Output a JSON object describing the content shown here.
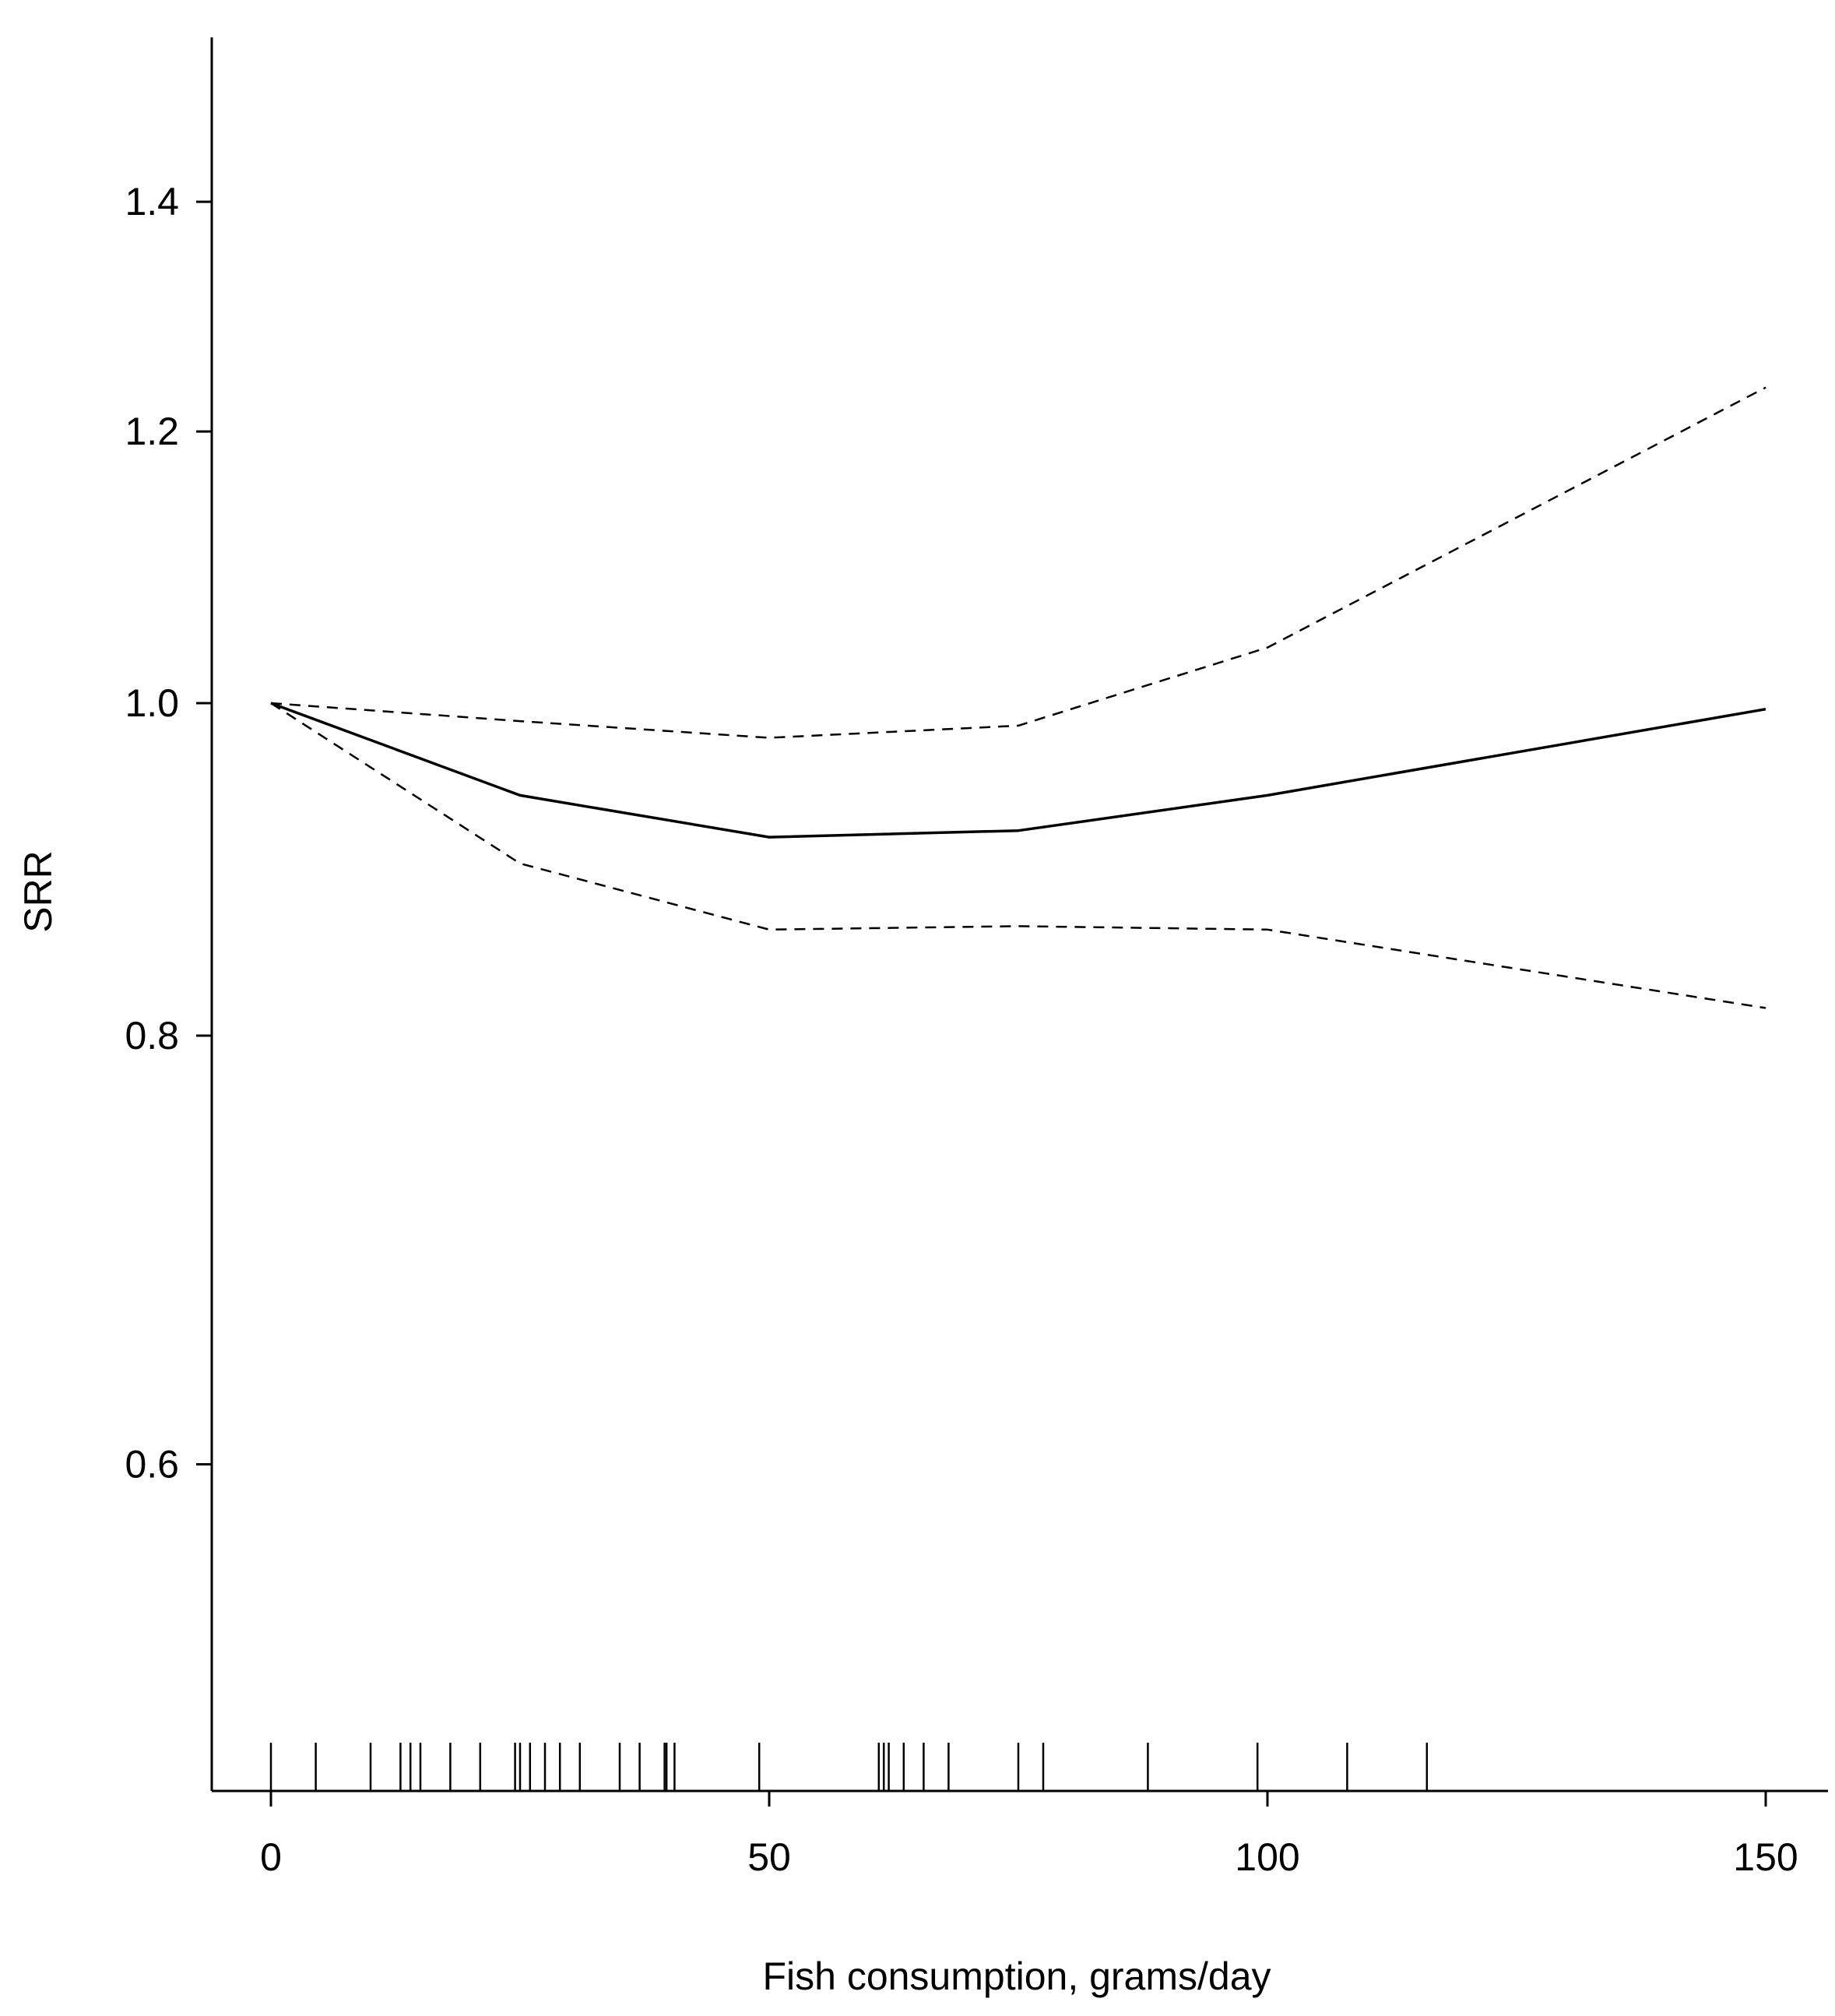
{
  "chart_data": {
    "type": "line",
    "title": "",
    "xlabel": "Fish consumption, grams/day",
    "ylabel": "SRR",
    "x_scale": "linear",
    "y_scale": "log",
    "xlim": [
      0,
      150
    ],
    "ylim": [
      0.5,
      1.5
    ],
    "grid": false,
    "legend": "none",
    "x_ticks": [
      0,
      50,
      100,
      150
    ],
    "x_tick_labels": [
      "0",
      "50",
      "100",
      "150"
    ],
    "y_ticks": [
      0.6,
      0.8,
      1.0,
      1.2,
      1.4
    ],
    "y_tick_labels": [
      "0.6",
      "0.8",
      "1.0",
      "1.2",
      "1.4"
    ],
    "series": [
      {
        "style": "solid",
        "color": "#000000",
        "x": [
          0,
          25,
          50,
          75,
          100,
          150
        ],
        "y": [
          1.0,
          0.94,
          0.914,
          0.918,
          0.94,
          0.996
        ]
      },
      {
        "style": "dashed",
        "color": "#000000",
        "x": [
          0,
          25,
          50,
          75,
          100,
          150
        ],
        "y": [
          1.0,
          0.988,
          0.977,
          0.985,
          1.038,
          1.236
        ]
      },
      {
        "style": "dashed",
        "color": "#000000",
        "x": [
          0,
          25,
          50,
          75,
          100,
          150
        ],
        "y": [
          1.0,
          0.898,
          0.859,
          0.861,
          0.859,
          0.815
        ]
      }
    ],
    "rug": {
      "style": "vertical tick marks along the bottom of the plot",
      "x": [
        0,
        4.5,
        10,
        13,
        14,
        15,
        18,
        21,
        24.5,
        25,
        26,
        27.5,
        29,
        31,
        35,
        37,
        39.5,
        39.7,
        40.5,
        49,
        61,
        61.5,
        62,
        63.5,
        65.5,
        68,
        75,
        77.5,
        88,
        99,
        108,
        116
      ]
    }
  }
}
